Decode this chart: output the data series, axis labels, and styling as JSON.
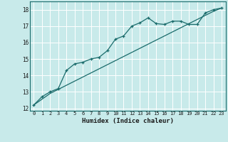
{
  "xlabel": "Humidex (Indice chaleur)",
  "bg_color": "#c8eaea",
  "grid_color": "#ffffff",
  "line_color": "#1a6b6b",
  "xlim": [
    -0.5,
    23.5
  ],
  "ylim": [
    11.85,
    18.5
  ],
  "xticks": [
    0,
    1,
    2,
    3,
    4,
    5,
    6,
    7,
    8,
    9,
    10,
    11,
    12,
    13,
    14,
    15,
    16,
    17,
    18,
    19,
    20,
    21,
    22,
    23
  ],
  "yticks": [
    12,
    13,
    14,
    15,
    16,
    17,
    18
  ],
  "line1_x": [
    0,
    1,
    2,
    3,
    4,
    5,
    6,
    7,
    8,
    9,
    10,
    11,
    12,
    13,
    14,
    15,
    16,
    17,
    18,
    19,
    20,
    21,
    22,
    23
  ],
  "line1_y": [
    12.2,
    12.7,
    13.0,
    13.2,
    14.3,
    14.7,
    14.8,
    15.0,
    15.1,
    15.5,
    16.2,
    16.4,
    17.0,
    17.2,
    17.5,
    17.15,
    17.1,
    17.3,
    17.3,
    17.1,
    17.1,
    17.8,
    18.0,
    18.1
  ],
  "line2_x": [
    0,
    1,
    2,
    3,
    4,
    5,
    6,
    7,
    8,
    9,
    10,
    11,
    12,
    13,
    14,
    15,
    16,
    17,
    18,
    19,
    20,
    21,
    22,
    23
  ],
  "line2_y": [
    12.2,
    12.55,
    12.9,
    13.15,
    13.4,
    13.65,
    13.9,
    14.15,
    14.4,
    14.65,
    14.9,
    15.15,
    15.4,
    15.65,
    15.9,
    16.15,
    16.4,
    16.65,
    16.9,
    17.15,
    17.4,
    17.65,
    17.9,
    18.1
  ]
}
